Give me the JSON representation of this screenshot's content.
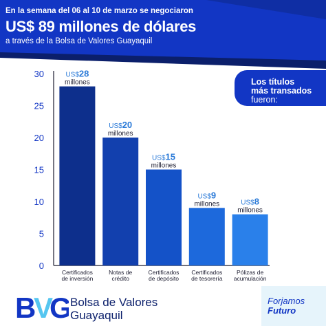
{
  "header": {
    "line1": "En la semana del 06 al 10 de marzo se negociaron",
    "amount_currency": "US$",
    "amount_value": "89",
    "amount_suffix": "millones de dólares",
    "line3": "a través de la Bolsa de Valores Guayaquil"
  },
  "callout": {
    "line1": "Los títulos",
    "line2": "más transados",
    "line3": "fueron:"
  },
  "chart_data": {
    "type": "bar",
    "categories": [
      [
        "Certificados",
        "de inversión"
      ],
      [
        "Notas de",
        "crédito"
      ],
      [
        "Certificados",
        "de depósito"
      ],
      [
        "Certificados",
        "de tesorería"
      ],
      [
        "Pólizas de",
        "acumulación"
      ]
    ],
    "values": [
      28,
      20,
      15,
      9,
      8
    ],
    "bar_labels": [
      {
        "currency": "US$",
        "value": "28",
        "unit": "millones"
      },
      {
        "currency": "US$",
        "value": "20",
        "unit": "millones"
      },
      {
        "currency": "US$",
        "value": "15",
        "unit": "millones"
      },
      {
        "currency": "US$",
        "value": "9",
        "unit": "millones"
      },
      {
        "currency": "US$",
        "value": "8",
        "unit": "millones"
      }
    ],
    "bar_colors": [
      "#0d2f8c",
      "#1240ae",
      "#1452c8",
      "#1d69dc",
      "#2a80ea"
    ],
    "ylim": [
      0,
      30
    ],
    "yticks": [
      0,
      5,
      10,
      15,
      20,
      25,
      30
    ],
    "grid": false,
    "title": "",
    "xlabel": "",
    "ylabel": ""
  },
  "footer": {
    "logo_text": "BVG",
    "brand_line1": "Bolsa de Valores",
    "brand_line2": "Guayaquil",
    "slogan_line1": "Forjamos",
    "slogan_line2": "Futuro"
  },
  "colors": {
    "header_blue": "#1236c4",
    "header_dark": "#0b1f6b",
    "accent_cyan": "#55c6f0",
    "axis": "#1a1a2e"
  }
}
